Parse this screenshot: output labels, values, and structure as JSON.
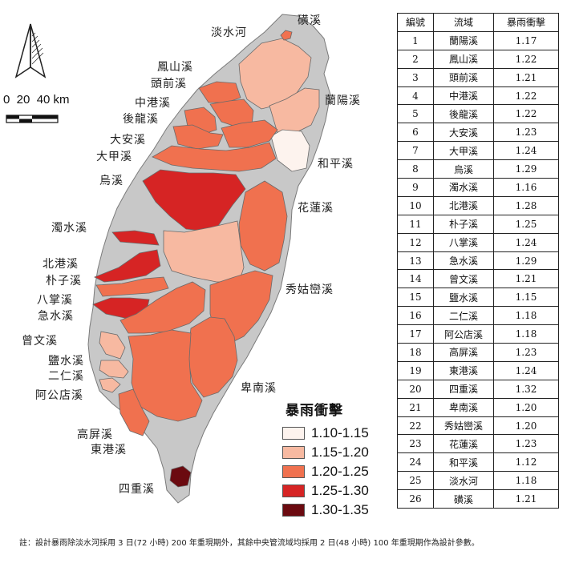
{
  "map": {
    "scale_label": "0  20  40 km",
    "legend": {
      "title": "暴雨衝擊",
      "classes": [
        {
          "label": "1.10-1.15",
          "color": "#fdf3ee"
        },
        {
          "label": "1.15-1.20",
          "color": "#f7b9a1"
        },
        {
          "label": "1.20-1.25",
          "color": "#f0714f"
        },
        {
          "label": "1.25-1.30",
          "color": "#d62424"
        },
        {
          "label": "1.30-1.35",
          "color": "#6b0a10"
        }
      ]
    },
    "no_data_color": "#c8c8c8",
    "labels": {
      "tanshui": "淡水河",
      "kuangxi": "磺溪",
      "fengshan": "鳳山溪",
      "touqian": "頭前溪",
      "zhonggang": "中港溪",
      "houlong": "後龍溪",
      "lanyang": "蘭陽溪",
      "daan": "大安溪",
      "dajia": "大甲溪",
      "heping": "和平溪",
      "wuxi": "烏溪",
      "hualien": "花蓮溪",
      "zhuoshui": "濁水溪",
      "beigang": "北港溪",
      "puzi": "朴子溪",
      "xiuguluan": "秀姑巒溪",
      "bazhang": "八掌溪",
      "jishui": "急水溪",
      "zengwen": "曾文溪",
      "yanshui": "鹽水溪",
      "erren": "二仁溪",
      "agongdian": "阿公店溪",
      "beinan": "卑南溪",
      "gaoping": "高屏溪",
      "donggang": "東港溪",
      "sichong": "四重溪"
    }
  },
  "table": {
    "headers": [
      "編號",
      "流域",
      "暴雨衝擊"
    ],
    "rows": [
      [
        "1",
        "蘭陽溪",
        "1.17"
      ],
      [
        "2",
        "鳳山溪",
        "1.22"
      ],
      [
        "3",
        "頭前溪",
        "1.21"
      ],
      [
        "4",
        "中港溪",
        "1.22"
      ],
      [
        "5",
        "後龍溪",
        "1.22"
      ],
      [
        "6",
        "大安溪",
        "1.23"
      ],
      [
        "7",
        "大甲溪",
        "1.24"
      ],
      [
        "8",
        "烏溪",
        "1.29"
      ],
      [
        "9",
        "濁水溪",
        "1.16"
      ],
      [
        "10",
        "北港溪",
        "1.28"
      ],
      [
        "11",
        "朴子溪",
        "1.25"
      ],
      [
        "12",
        "八掌溪",
        "1.24"
      ],
      [
        "13",
        "急水溪",
        "1.29"
      ],
      [
        "14",
        "曾文溪",
        "1.21"
      ],
      [
        "15",
        "鹽水溪",
        "1.15"
      ],
      [
        "16",
        "二仁溪",
        "1.18"
      ],
      [
        "17",
        "阿公店溪",
        "1.18"
      ],
      [
        "18",
        "高屏溪",
        "1.23"
      ],
      [
        "19",
        "東港溪",
        "1.24"
      ],
      [
        "20",
        "四重溪",
        "1.32"
      ],
      [
        "21",
        "卑南溪",
        "1.20"
      ],
      [
        "22",
        "秀姑巒溪",
        "1.20"
      ],
      [
        "23",
        "花蓮溪",
        "1.23"
      ],
      [
        "24",
        "和平溪",
        "1.12"
      ],
      [
        "25",
        "淡水河",
        "1.18"
      ],
      [
        "26",
        "磺溪",
        "1.21"
      ]
    ]
  },
  "note": "註：設計暴雨除淡水河採用 3 日(72 小時) 200 年重現期外，其餘中央管流域均採用 2 日(48 小時) 100 年重現期作為設計參數。"
}
